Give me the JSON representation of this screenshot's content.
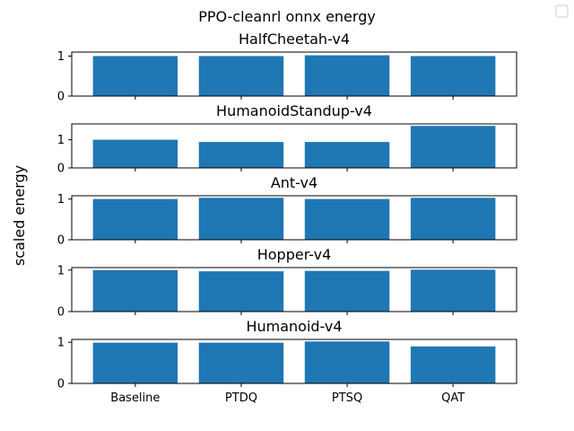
{
  "figure": {
    "suptitle": "PPO-cleanrl onnx energy",
    "ylabel": "scaled energy",
    "legend_marker": "empty-legend-box"
  },
  "chart_data": [
    {
      "type": "bar",
      "title": "HalfCheetah-v4",
      "categories": [
        "Baseline",
        "PTDQ",
        "PTSQ",
        "QAT"
      ],
      "values": [
        1.0,
        1.0,
        1.02,
        1.0
      ],
      "ylim": [
        0,
        1.1
      ],
      "yticks": [
        0,
        1
      ],
      "color": "#1f77b4",
      "grid": false
    },
    {
      "type": "bar",
      "title": "HumanoidStandup-v4",
      "categories": [
        "Baseline",
        "PTDQ",
        "PTSQ",
        "QAT"
      ],
      "values": [
        1.0,
        0.92,
        0.92,
        1.49
      ],
      "ylim": [
        0,
        1.56
      ],
      "yticks": [
        0,
        1
      ],
      "color": "#1f77b4",
      "grid": false
    },
    {
      "type": "bar",
      "title": "Ant-v4",
      "categories": [
        "Baseline",
        "PTDQ",
        "PTSQ",
        "QAT"
      ],
      "values": [
        1.0,
        1.03,
        1.0,
        1.03
      ],
      "ylim": [
        0,
        1.08
      ],
      "yticks": [
        0,
        1
      ],
      "color": "#1f77b4",
      "grid": false
    },
    {
      "type": "bar",
      "title": "Hopper-v4",
      "categories": [
        "Baseline",
        "PTDQ",
        "PTSQ",
        "QAT"
      ],
      "values": [
        1.0,
        0.97,
        0.98,
        1.01
      ],
      "ylim": [
        0,
        1.06
      ],
      "yticks": [
        0,
        1
      ],
      "color": "#1f77b4",
      "grid": false
    },
    {
      "type": "bar",
      "title": "Humanoid-v4",
      "categories": [
        "Baseline",
        "PTDQ",
        "PTSQ",
        "QAT"
      ],
      "values": [
        0.99,
        0.99,
        1.02,
        0.9
      ],
      "ylim": [
        0,
        1.07
      ],
      "yticks": [
        0,
        1
      ],
      "color": "#1f77b4",
      "grid": false
    }
  ]
}
